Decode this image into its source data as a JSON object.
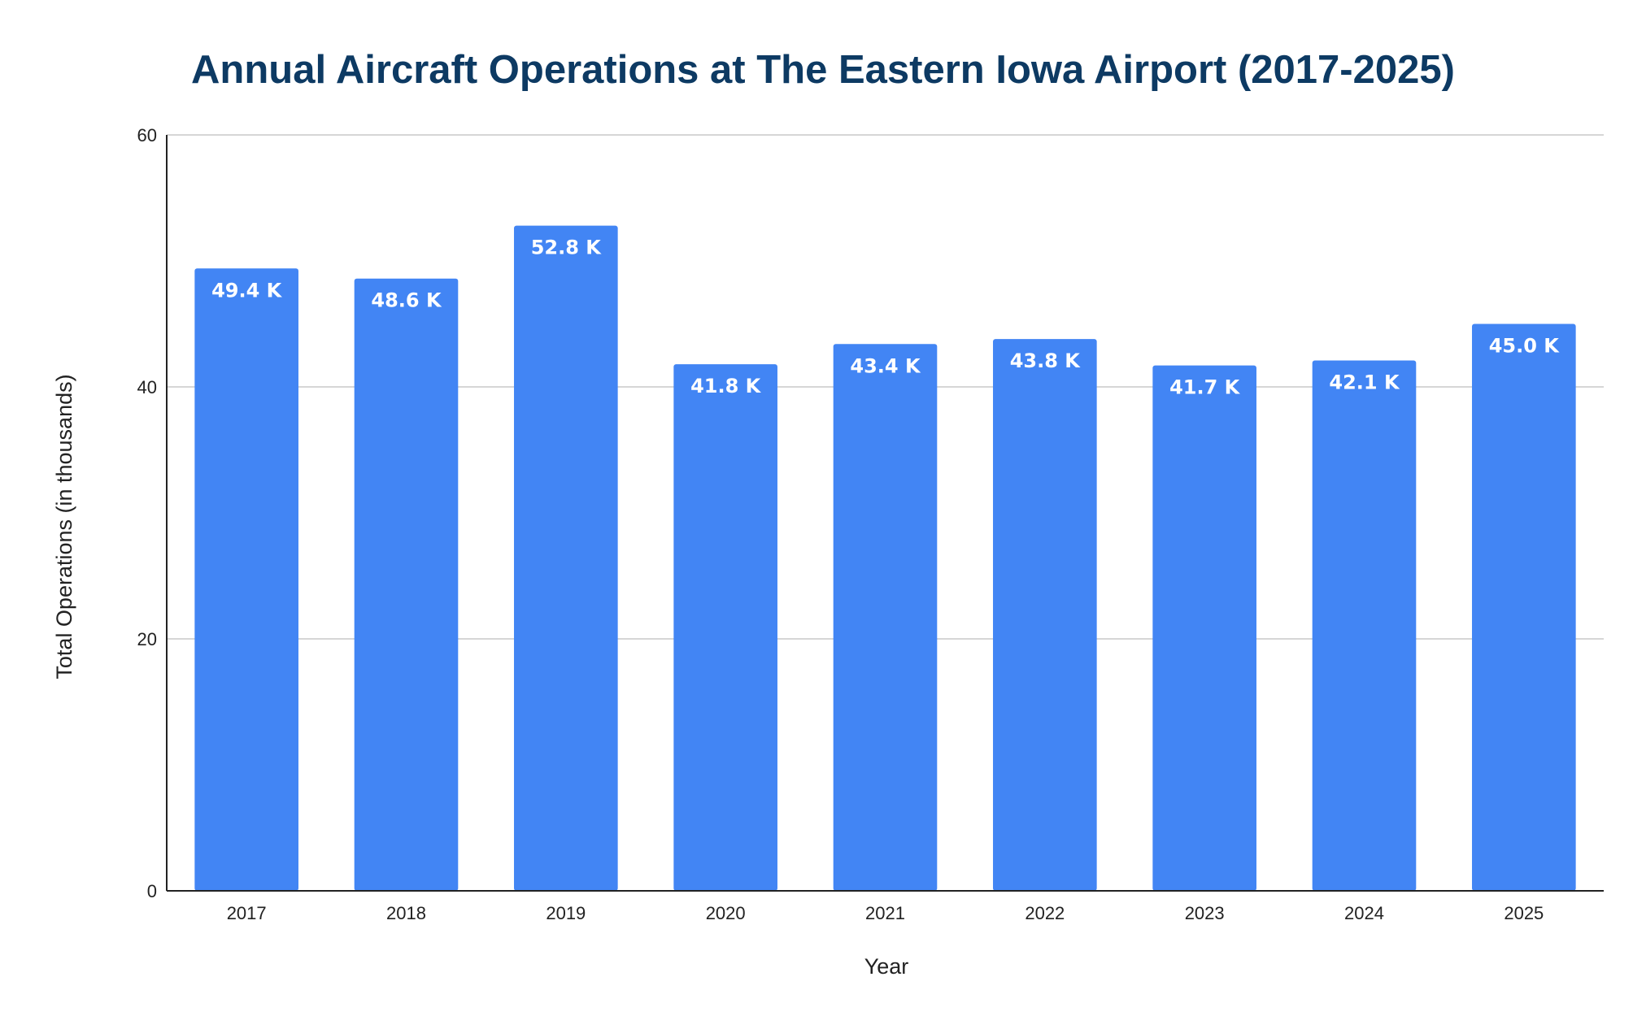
{
  "chart_data": {
    "type": "bar",
    "title": "Annual Aircraft Operations at The Eastern Iowa Airport (2017-2025)",
    "xlabel": "Year",
    "ylabel": "Total Operations (in thousands)",
    "categories": [
      "2017",
      "2018",
      "2019",
      "2020",
      "2021",
      "2022",
      "2023",
      "2024",
      "2025"
    ],
    "values": [
      49.4,
      48.6,
      52.8,
      41.8,
      43.4,
      43.8,
      41.7,
      42.1,
      45.0
    ],
    "data_labels": [
      "49.4 K",
      "48.6 K",
      "52.8 K",
      "41.8 K",
      "43.4 K",
      "43.8 K",
      "41.7 K",
      "42.1 K",
      "45.0 K"
    ],
    "ylim": [
      0,
      60
    ],
    "yticks": [
      "0",
      "20",
      "40",
      "60"
    ],
    "grid": true,
    "legend": "none",
    "colors": {
      "bar": "#4285f4",
      "title": "#0d3a63",
      "data_label": "#ffffff"
    }
  }
}
